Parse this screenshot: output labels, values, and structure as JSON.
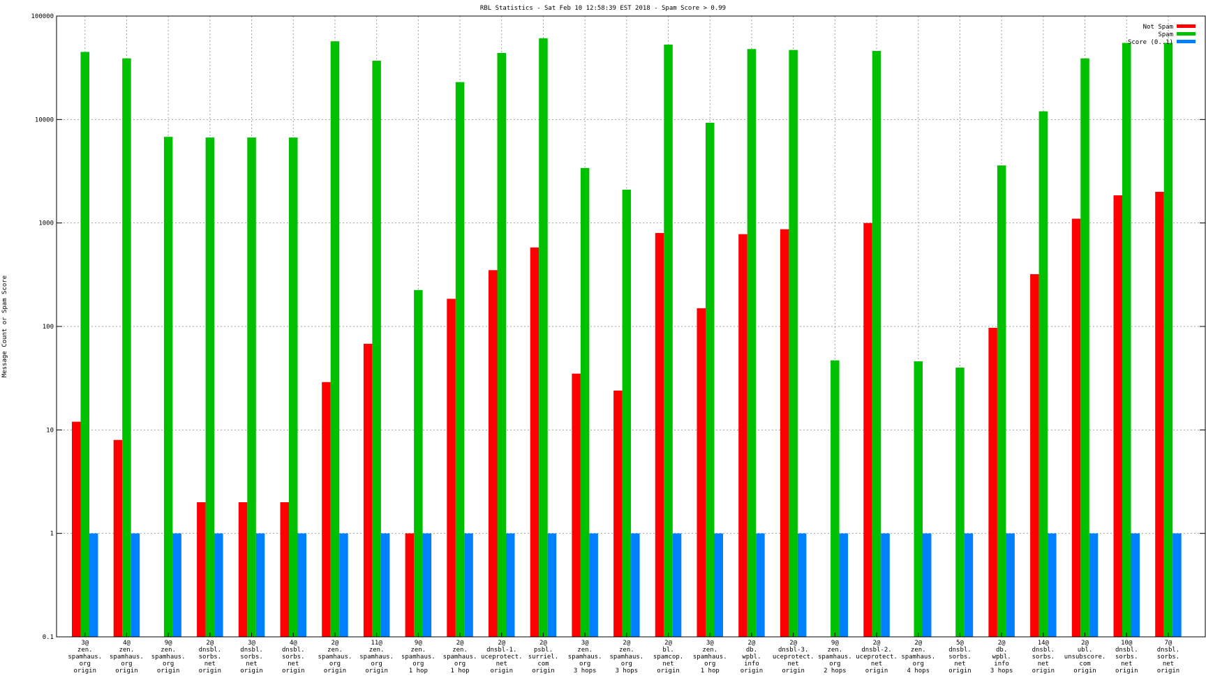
{
  "chart_data": {
    "type": "bar",
    "title": "RBL Statistics - Sat Feb 10 12:58:39 EST 2018 - Spam Score > 0.99",
    "ylabel": "Message Count or Spam Score",
    "xlabel": "",
    "yscale": "log",
    "ylim": [
      0.1,
      100000
    ],
    "yticks": [
      {
        "value": 0.1,
        "label": "0.1"
      },
      {
        "value": 1,
        "label": "1"
      },
      {
        "value": 10,
        "label": "10"
      },
      {
        "value": 100,
        "label": "100"
      },
      {
        "value": 1000,
        "label": "1000"
      },
      {
        "value": 10000,
        "label": "10000"
      },
      {
        "value": 100000,
        "label": "100000"
      }
    ],
    "grid": true,
    "legend_position": "top-right",
    "categories": [
      [
        "3@",
        "zen.",
        "spamhaus.",
        "org",
        "origin"
      ],
      [
        "4@",
        "zen.",
        "spamhaus.",
        "org",
        "origin"
      ],
      [
        "9@",
        "zen.",
        "spamhaus.",
        "org",
        "origin"
      ],
      [
        "2@",
        "dnsbl.",
        "sorbs.",
        "net",
        "origin"
      ],
      [
        "3@",
        "dnsbl.",
        "sorbs.",
        "net",
        "origin"
      ],
      [
        "4@",
        "dnsbl.",
        "sorbs.",
        "net",
        "origin"
      ],
      [
        "2@",
        "zen.",
        "spamhaus.",
        "org",
        "origin"
      ],
      [
        "11@",
        "zen.",
        "spamhaus.",
        "org",
        "origin"
      ],
      [
        "9@",
        "zen.",
        "spamhaus.",
        "org",
        "1 hop"
      ],
      [
        "2@",
        "zen.",
        "spamhaus.",
        "org",
        "1 hop"
      ],
      [
        "2@",
        "dnsbl-1.",
        "uceprotect.",
        "net",
        "origin"
      ],
      [
        "2@",
        "psbl.",
        "surriel.",
        "com",
        "origin"
      ],
      [
        "3@",
        "zen.",
        "spamhaus.",
        "org",
        "3 hops"
      ],
      [
        "2@",
        "zen.",
        "spamhaus.",
        "org",
        "3 hops"
      ],
      [
        "2@",
        "bl.",
        "spamcop.",
        "net",
        "origin"
      ],
      [
        "3@",
        "zen.",
        "spamhaus.",
        "org",
        "1 hop"
      ],
      [
        "2@",
        "db.",
        "wpbl.",
        "info",
        "origin"
      ],
      [
        "2@",
        "dnsbl-3.",
        "uceprotect.",
        "net",
        "origin"
      ],
      [
        "9@",
        "zen.",
        "spamhaus.",
        "org",
        "2 hops"
      ],
      [
        "2@",
        "dnsbl-2.",
        "uceprotect.",
        "net",
        "origin"
      ],
      [
        "2@",
        "zen.",
        "spamhaus.",
        "org",
        "4 hops"
      ],
      [
        "5@",
        "dnsbl.",
        "sorbs.",
        "net",
        "origin"
      ],
      [
        "2@",
        "db.",
        "wpbl.",
        "info",
        "3 hops"
      ],
      [
        "14@",
        "dnsbl.",
        "sorbs.",
        "net",
        "origin"
      ],
      [
        "2@",
        "ubl.",
        "unsubscore.",
        "com",
        "origin"
      ],
      [
        "10@",
        "dnsbl.",
        "sorbs.",
        "net",
        "origin"
      ],
      [
        "7@",
        "dnsbl.",
        "sorbs.",
        "net",
        "origin"
      ]
    ],
    "series": [
      {
        "name": "Not Spam",
        "color": "#ff0000",
        "values": [
          12,
          8,
          null,
          2,
          2,
          2,
          29,
          68,
          1,
          185,
          350,
          580,
          35,
          24,
          800,
          150,
          780,
          870,
          null,
          1000,
          null,
          null,
          97,
          320,
          1100,
          1850,
          2000
        ]
      },
      {
        "name": "Spam",
        "color": "#00c000",
        "values": [
          45000,
          39000,
          6800,
          6700,
          6700,
          6700,
          57000,
          37000,
          225,
          23000,
          44000,
          61000,
          3400,
          2100,
          53000,
          9300,
          48000,
          47000,
          47,
          46000,
          46,
          40,
          3600,
          12000,
          39000,
          55000,
          55000
        ]
      },
      {
        "name": "Score (0..1)",
        "color": "#0080ff",
        "values": [
          1,
          1,
          1,
          1,
          1,
          1,
          1,
          1,
          1,
          1,
          1,
          1,
          1,
          1,
          1,
          1,
          1,
          1,
          1,
          1,
          1,
          1,
          1,
          1,
          1,
          1,
          1
        ]
      }
    ]
  }
}
